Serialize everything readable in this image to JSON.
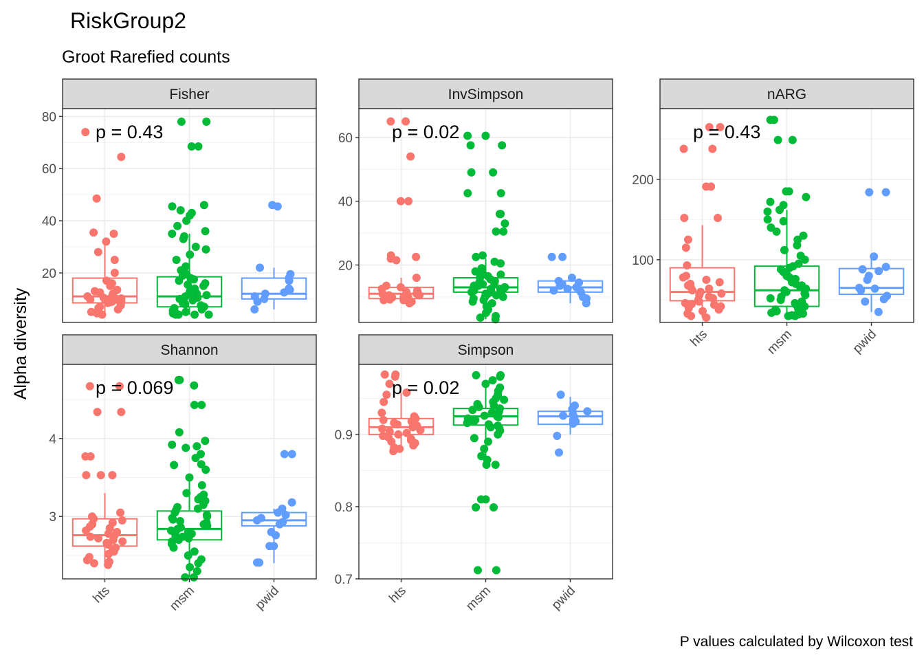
{
  "title": "RiskGroup2",
  "subtitle": "Groot Rarefied counts",
  "caption": "P values calculated by Wilcoxon test",
  "ylabel": "Alpha diversity",
  "groups": [
    "hts",
    "msm",
    "pwid"
  ],
  "colors": {
    "hts": "#F8766D",
    "msm": "#00BA38",
    "pwid": "#619CFF"
  },
  "chart_data": [
    {
      "type": "box-jitter",
      "facet": "Fisher",
      "pvalue": "p = 0.43",
      "ylim": [
        1,
        83
      ],
      "yticks": [
        20,
        40,
        60,
        80
      ],
      "categories": [
        "hts",
        "msm",
        "pwid"
      ],
      "boxes": [
        {
          "group": "hts",
          "min": 4,
          "q1": 8.5,
          "median": 11,
          "q3": 18,
          "max": 31
        },
        {
          "group": "msm",
          "min": 4,
          "q1": 7,
          "median": 11,
          "q3": 18.5,
          "max": 35
        },
        {
          "group": "pwid",
          "min": 6,
          "q1": 10,
          "median": 12,
          "q3": 18,
          "max": 22
        }
      ],
      "points": {
        "hts": [
          74,
          64.5,
          48.5,
          35.5,
          35,
          32,
          28,
          25,
          20,
          17,
          16,
          15,
          13.5,
          13,
          12.5,
          12,
          11.5,
          11,
          10.8,
          10.5,
          10.2,
          10,
          9.8,
          9.5,
          9.2,
          9,
          8.8,
          8.5,
          8,
          7.5,
          7,
          6.5,
          6,
          5.5,
          5,
          4.5,
          4
        ],
        "msm": [
          78,
          78,
          68.5,
          68.5,
          46,
          45.5,
          44,
          43,
          42,
          40,
          38,
          36,
          35,
          34,
          33,
          30,
          29,
          27,
          25,
          22.5,
          21,
          20,
          19.5,
          19,
          18,
          17.5,
          17,
          16,
          15.5,
          15,
          14,
          13.5,
          13,
          12.5,
          12,
          11.5,
          11,
          10.5,
          10,
          9.5,
          9,
          8.5,
          8,
          7.5,
          7,
          6.5,
          6,
          5.5,
          5,
          4.5,
          4.5,
          4,
          4,
          4,
          4
        ],
        "pwid": [
          46,
          45.5,
          22,
          19.5,
          18,
          17,
          14,
          13.5,
          12.5,
          12,
          11,
          10,
          9,
          6
        ]
      }
    },
    {
      "type": "box-jitter",
      "facet": "InvSimpson",
      "pvalue": "p = 0.02",
      "ylim": [
        2,
        69
      ],
      "yticks": [
        20,
        40,
        60
      ],
      "categories": [
        "hts",
        "msm",
        "pwid"
      ],
      "boxes": [
        {
          "group": "hts",
          "min": 8,
          "q1": 9.5,
          "median": 11,
          "q3": 13,
          "max": 16
        },
        {
          "group": "msm",
          "min": 3,
          "q1": 11.5,
          "median": 13,
          "q3": 16,
          "max": 22
        },
        {
          "group": "pwid",
          "min": 8,
          "q1": 11.5,
          "median": 13,
          "q3": 15,
          "max": 16
        }
      ],
      "points": {
        "hts": [
          65,
          65,
          54,
          40,
          40,
          23,
          22.5,
          22,
          21.5,
          16,
          13.5,
          13,
          12.5,
          12,
          11.5,
          11.5,
          11,
          11,
          10.5,
          10.5,
          10,
          10,
          9.8,
          9.5,
          9.2,
          9,
          9,
          8.5,
          8.5,
          8
        ],
        "msm": [
          60.5,
          60.5,
          57.5,
          57.5,
          49,
          49,
          42.5,
          42.5,
          36,
          36,
          33,
          30.5,
          30.5,
          23,
          22.5,
          21,
          20.5,
          19,
          18,
          17.5,
          17,
          16.5,
          16,
          15.5,
          15,
          14.5,
          14,
          14,
          13.5,
          13.5,
          13,
          13,
          12.5,
          12.5,
          12,
          12,
          11.5,
          11.5,
          11,
          11,
          10.5,
          10,
          10,
          9.5,
          9,
          8.5,
          8,
          7,
          6,
          5,
          4,
          3.5,
          3
        ],
        "pwid": [
          22.5,
          22.5,
          16,
          15,
          14.5,
          14,
          13.5,
          13,
          12.5,
          12,
          11.5,
          10,
          9.5,
          8
        ]
      }
    },
    {
      "type": "box-jitter",
      "facet": "nARG",
      "pvalue": "p = 0.43",
      "ylim": [
        22,
        288
      ],
      "yticks": [
        100,
        200
      ],
      "categories": [
        "hts",
        "msm",
        "pwid"
      ],
      "boxes": [
        {
          "group": "hts",
          "min": 28,
          "q1": 49,
          "median": 60,
          "q3": 90,
          "max": 143
        },
        {
          "group": "msm",
          "min": 30,
          "q1": 42,
          "median": 62,
          "q3": 92,
          "max": 162
        },
        {
          "group": "pwid",
          "min": 35,
          "q1": 57,
          "median": 65,
          "q3": 89,
          "max": 104
        }
      ],
      "points": {
        "hts": [
          265,
          265,
          238,
          238,
          191,
          191,
          152,
          152,
          125,
          115,
          93,
          80,
          78,
          75,
          72,
          70,
          68,
          66,
          64,
          62,
          60,
          58,
          56,
          54,
          52,
          50,
          48,
          46,
          45,
          44,
          42,
          40,
          38,
          36,
          33,
          30,
          28
        ],
        "msm": [
          274,
          274,
          249,
          249,
          185,
          185,
          178,
          172,
          168,
          162,
          160,
          150,
          148,
          140,
          135,
          130,
          125,
          118,
          112,
          105,
          100,
          95,
          92,
          90,
          88,
          85,
          82,
          80,
          78,
          76,
          74,
          72,
          70,
          68,
          66,
          64,
          62,
          60,
          58,
          56,
          54,
          52,
          50,
          48,
          46,
          44,
          42,
          40,
          38,
          36,
          35,
          34,
          33,
          32,
          31,
          30,
          30
        ],
        "pwid": [
          184,
          184,
          104,
          91,
          88,
          86,
          80,
          75,
          65,
          64,
          62,
          55,
          51,
          48,
          35
        ]
      }
    },
    {
      "type": "box-jitter",
      "facet": "Shannon",
      "pvalue": "p = 0.069",
      "ylim": [
        2.2,
        4.95
      ],
      "yticks": [
        3,
        4
      ],
      "categories": [
        "hts",
        "msm",
        "pwid"
      ],
      "boxes": [
        {
          "group": "hts",
          "min": 2.38,
          "q1": 2.62,
          "median": 2.76,
          "q3": 2.97,
          "max": 3.3
        },
        {
          "group": "msm",
          "min": 2.22,
          "q1": 2.7,
          "median": 2.84,
          "q3": 3.07,
          "max": 3.52
        },
        {
          "group": "pwid",
          "min": 2.4,
          "q1": 2.88,
          "median": 2.95,
          "q3": 3.05,
          "max": 3.1
        }
      ],
      "points": {
        "hts": [
          4.67,
          4.67,
          4.34,
          4.34,
          3.77,
          3.77,
          3.53,
          3.53,
          3.53,
          3.05,
          3.0,
          2.97,
          2.95,
          2.92,
          2.9,
          2.87,
          2.85,
          2.82,
          2.8,
          2.78,
          2.76,
          2.74,
          2.72,
          2.7,
          2.68,
          2.66,
          2.64,
          2.6,
          2.58,
          2.55,
          2.52,
          2.48,
          2.44,
          2.42,
          2.4,
          2.38
        ],
        "msm": [
          4.75,
          4.75,
          4.68,
          4.43,
          4.43,
          4.08,
          3.97,
          3.92,
          3.9,
          3.88,
          3.8,
          3.75,
          3.67,
          3.66,
          3.6,
          3.5,
          3.4,
          3.3,
          3.28,
          3.25,
          3.22,
          3.2,
          3.15,
          3.12,
          3.1,
          3.08,
          3.05,
          3.02,
          3.0,
          2.98,
          2.96,
          2.94,
          2.92,
          2.9,
          2.88,
          2.86,
          2.84,
          2.82,
          2.8,
          2.78,
          2.76,
          2.74,
          2.72,
          2.7,
          2.68,
          2.65,
          2.6,
          2.55,
          2.5,
          2.45,
          2.4,
          2.35,
          2.3,
          2.22,
          2.22
        ],
        "pwid": [
          3.8,
          3.8,
          3.18,
          3.1,
          3.05,
          3.02,
          2.98,
          2.95,
          2.93,
          2.9,
          2.8,
          2.76,
          2.62,
          2.62,
          2.41,
          2.41
        ]
      }
    },
    {
      "type": "box-jitter",
      "facet": "Simpson",
      "pvalue": "p = 0.02",
      "ylim": [
        0.7,
        0.997
      ],
      "yticks": [
        0.7,
        0.8,
        0.9
      ],
      "categories": [
        "hts",
        "msm",
        "pwid"
      ],
      "boxes": [
        {
          "group": "hts",
          "min": 0.877,
          "q1": 0.9,
          "median": 0.91,
          "q3": 0.922,
          "max": 0.958
        },
        {
          "group": "msm",
          "min": 0.86,
          "q1": 0.913,
          "median": 0.925,
          "q3": 0.936,
          "max": 0.97
        },
        {
          "group": "pwid",
          "min": 0.9,
          "q1": 0.914,
          "median": 0.925,
          "q3": 0.932,
          "max": 0.952
        }
      ],
      "points": {
        "hts": [
          0.983,
          0.983,
          0.98,
          0.97,
          0.958,
          0.955,
          0.945,
          0.93,
          0.925,
          0.922,
          0.92,
          0.918,
          0.916,
          0.914,
          0.912,
          0.91,
          0.908,
          0.906,
          0.904,
          0.902,
          0.9,
          0.898,
          0.896,
          0.894,
          0.892,
          0.89,
          0.888,
          0.885,
          0.882,
          0.88,
          0.877
        ],
        "msm": [
          0.982,
          0.982,
          0.98,
          0.975,
          0.97,
          0.965,
          0.96,
          0.955,
          0.95,
          0.948,
          0.945,
          0.942,
          0.94,
          0.938,
          0.936,
          0.934,
          0.932,
          0.93,
          0.928,
          0.926,
          0.925,
          0.924,
          0.922,
          0.92,
          0.918,
          0.916,
          0.914,
          0.912,
          0.91,
          0.908,
          0.905,
          0.9,
          0.895,
          0.89,
          0.88,
          0.87,
          0.865,
          0.858,
          0.858,
          0.81,
          0.81,
          0.799,
          0.799,
          0.712,
          0.712
        ],
        "pwid": [
          0.955,
          0.94,
          0.935,
          0.932,
          0.928,
          0.926,
          0.924,
          0.92,
          0.918,
          0.915,
          0.898,
          0.875
        ]
      }
    }
  ]
}
